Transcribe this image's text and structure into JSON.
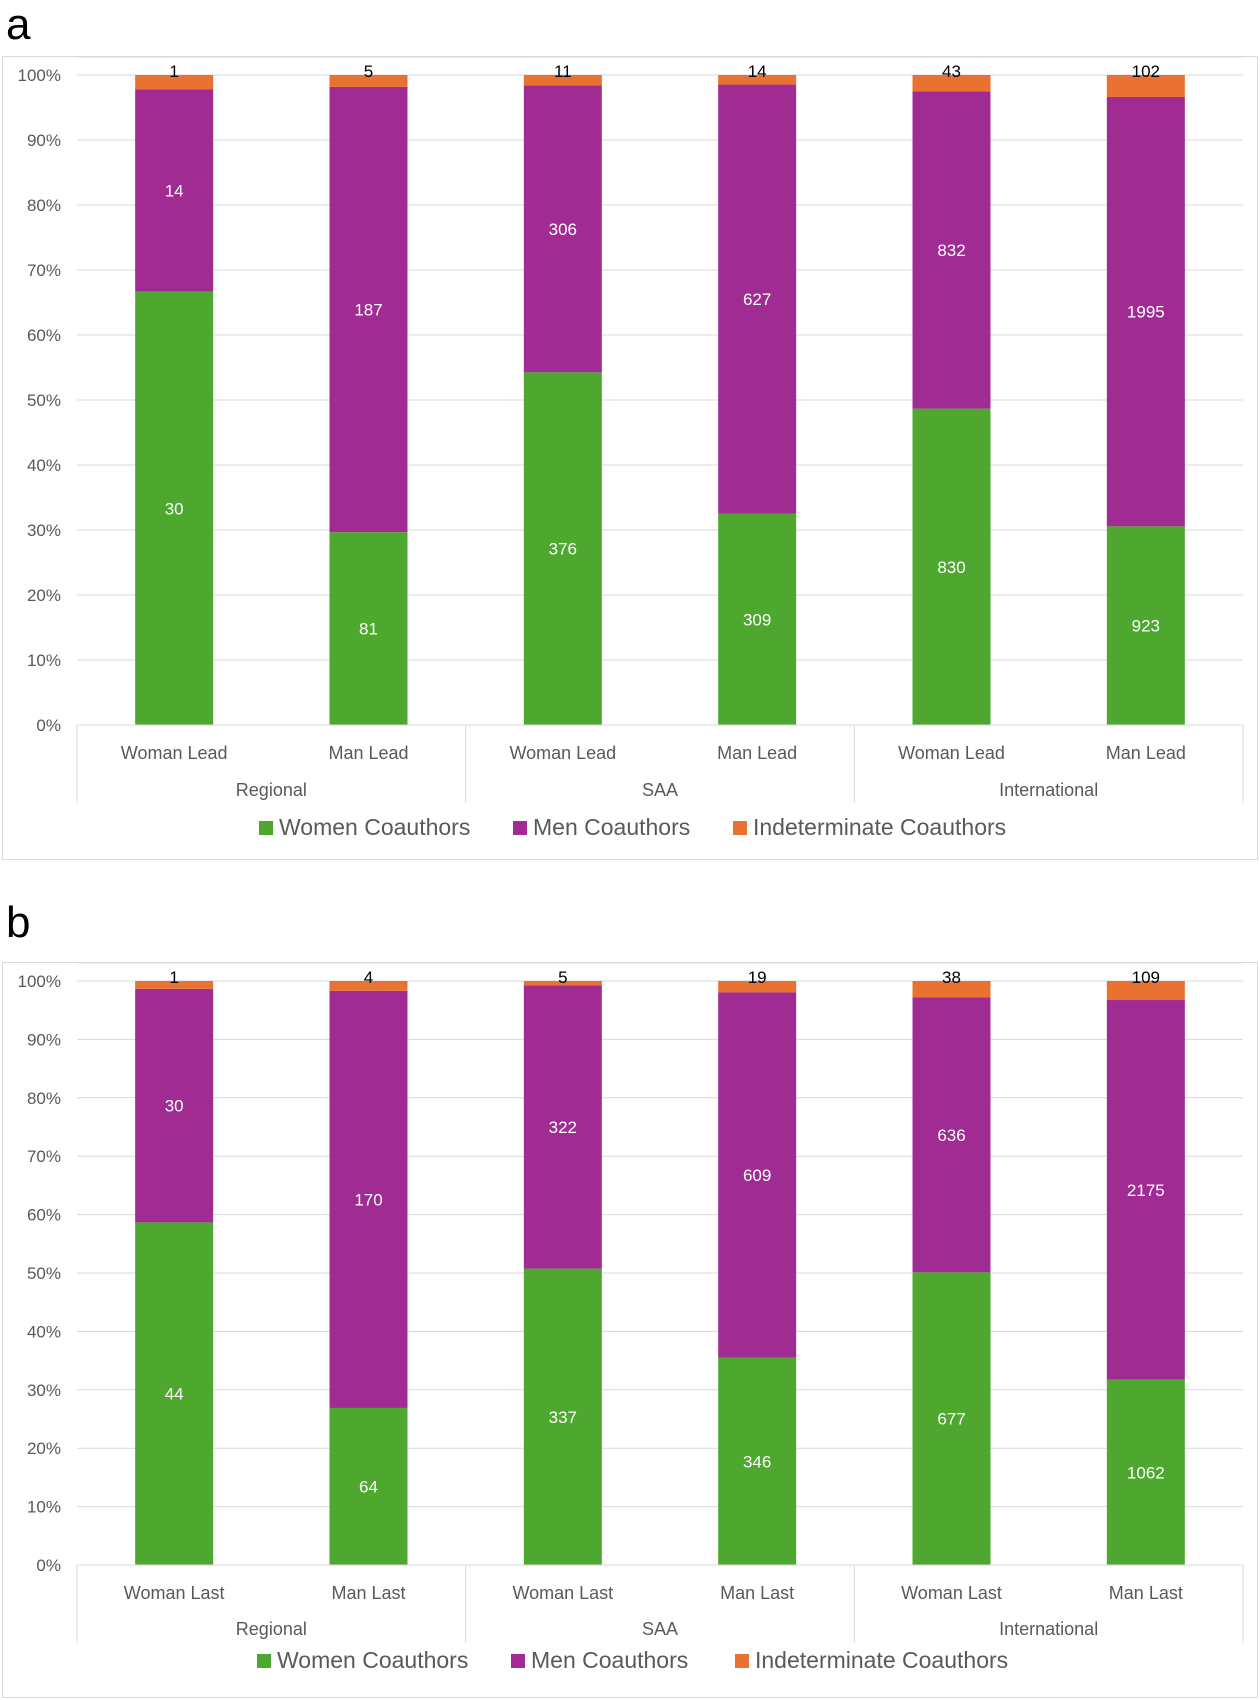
{
  "chart_data": [
    {
      "panel_label": "a",
      "type": "bar",
      "stacked": "percent",
      "groups": [
        {
          "label": "Regional",
          "categories": [
            "Woman Lead",
            "Man Lead"
          ]
        },
        {
          "label": "SAA",
          "categories": [
            "Woman Lead",
            "Man Lead"
          ]
        },
        {
          "label": "International",
          "categories": [
            "Woman Lead",
            "Man Lead"
          ]
        }
      ],
      "series": [
        {
          "name": "Women Coauthors",
          "color": "#4ea72e",
          "values": [
            30,
            81,
            376,
            309,
            830,
            923
          ]
        },
        {
          "name": "Men Coauthors",
          "color": "#a02b93",
          "values": [
            14,
            187,
            306,
            627,
            832,
            1995
          ]
        },
        {
          "name": "Indeterminate Coauthors",
          "color": "#e97132",
          "values": [
            1,
            5,
            11,
            14,
            43,
            102
          ]
        }
      ],
      "yticks": [
        "0%",
        "10%",
        "20%",
        "30%",
        "40%",
        "50%",
        "60%",
        "70%",
        "80%",
        "90%",
        "100%"
      ],
      "ylim": [
        0,
        100
      ],
      "grid": true,
      "legend_position": "bottom"
    },
    {
      "panel_label": "b",
      "type": "bar",
      "stacked": "percent",
      "groups": [
        {
          "label": "Regional",
          "categories": [
            "Woman Last",
            "Man Last"
          ]
        },
        {
          "label": "SAA",
          "categories": [
            "Woman Last",
            "Man Last"
          ]
        },
        {
          "label": "International",
          "categories": [
            "Woman Last",
            "Man Last"
          ]
        }
      ],
      "series": [
        {
          "name": "Women Coauthors",
          "color": "#4ea72e",
          "values": [
            44,
            64,
            337,
            346,
            677,
            1062
          ]
        },
        {
          "name": "Men Coauthors",
          "color": "#a02b93",
          "values": [
            30,
            170,
            322,
            609,
            636,
            2175
          ]
        },
        {
          "name": "Indeterminate Coauthors",
          "color": "#e97132",
          "values": [
            1,
            4,
            5,
            19,
            38,
            109
          ]
        }
      ],
      "yticks": [
        "0%",
        "10%",
        "20%",
        "30%",
        "40%",
        "50%",
        "60%",
        "70%",
        "80%",
        "90%",
        "100%"
      ],
      "ylim": [
        0,
        100
      ],
      "grid": true,
      "legend_position": "bottom"
    }
  ]
}
